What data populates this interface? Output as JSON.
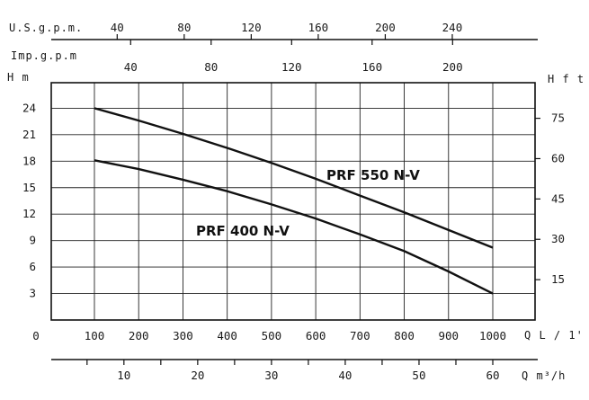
{
  "chart_data": {
    "type": "line",
    "title": "",
    "x": [
      100,
      200,
      300,
      400,
      500,
      600,
      700,
      800,
      900,
      1000
    ],
    "x_unit_label": "Q L / 1'",
    "y_unit_label": "H m",
    "ylim": [
      0,
      27
    ],
    "xlim": [
      0,
      1100
    ],
    "grid": true,
    "series": [
      {
        "name": "PRF 550 N-V",
        "x": [
          100,
          200,
          300,
          400,
          500,
          600,
          700,
          800,
          900,
          1000
        ],
        "values": [
          24.0,
          22.6,
          21.1,
          19.5,
          17.8,
          16.0,
          14.1,
          12.2,
          10.2,
          8.2
        ]
      },
      {
        "name": "PRF 400 N-V",
        "x": [
          100,
          200,
          300,
          400,
          500,
          600,
          700,
          800,
          900,
          1000
        ],
        "values": [
          18.1,
          17.1,
          15.9,
          14.6,
          13.1,
          11.5,
          9.7,
          7.8,
          5.5,
          3.0
        ]
      }
    ],
    "axes": {
      "bottom_primary": {
        "label": "Q L / 1'",
        "ticks": [
          "0",
          "100",
          "200",
          "300",
          "400",
          "500",
          "600",
          "700",
          "800",
          "900",
          "1000"
        ]
      },
      "bottom_secondary": {
        "label": "Q m³/h",
        "ticks": [
          "10",
          "20",
          "30",
          "40",
          "50",
          "60"
        ]
      },
      "left": {
        "label": "H m",
        "ticks": [
          "3",
          "6",
          "9",
          "12",
          "15",
          "18",
          "21",
          "24"
        ]
      },
      "right": {
        "label": "H f t",
        "ticks": [
          "15",
          "30",
          "45",
          "60",
          "75"
        ]
      },
      "top_usgpm": {
        "label": "U.S.g.p.m.",
        "ticks": [
          "40",
          "80",
          "120",
          "160",
          "200",
          "240"
        ]
      },
      "top_impgpm": {
        "label": "Imp.g.p.m",
        "ticks": [
          "40",
          "80",
          "120",
          "160",
          "200"
        ]
      }
    }
  }
}
